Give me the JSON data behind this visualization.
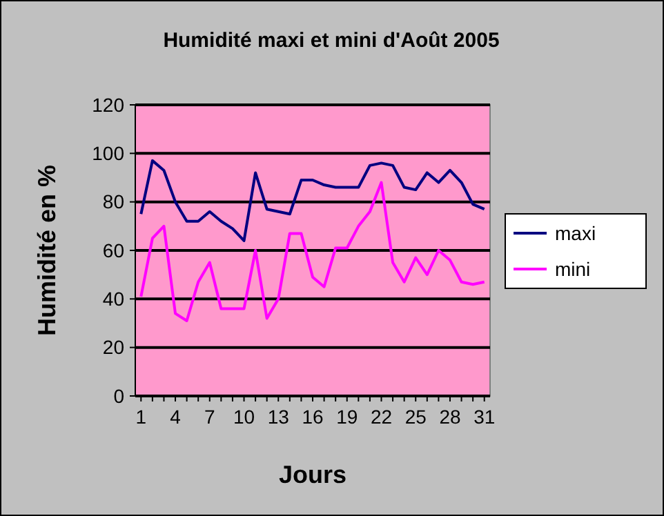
{
  "chart_data": {
    "type": "line",
    "title": "Humidité maxi et mini d'Août 2005",
    "xlabel": "Jours",
    "ylabel": "Humidité en %",
    "x": [
      1,
      2,
      3,
      4,
      5,
      6,
      7,
      8,
      9,
      10,
      11,
      12,
      13,
      14,
      15,
      16,
      17,
      18,
      19,
      20,
      21,
      22,
      23,
      24,
      25,
      26,
      27,
      28,
      29,
      30,
      31
    ],
    "xlim": [
      0.5,
      31.5
    ],
    "xticks": [
      1,
      4,
      7,
      10,
      13,
      16,
      19,
      22,
      25,
      28,
      31
    ],
    "ylim": [
      0,
      120
    ],
    "yticks": [
      0,
      20,
      40,
      60,
      80,
      100,
      120
    ],
    "grid": "y",
    "legend": "right",
    "series": [
      {
        "name": "maxi",
        "color": "#000080",
        "values": [
          75,
          97,
          93,
          80,
          72,
          72,
          76,
          72,
          69,
          64,
          92,
          77,
          76,
          75,
          89,
          89,
          87,
          86,
          86,
          86,
          95,
          96,
          95,
          86,
          85,
          92,
          88,
          93,
          88,
          79,
          77
        ]
      },
      {
        "name": "mini",
        "color": "#ff00ff",
        "values": [
          41,
          65,
          70,
          34,
          31,
          47,
          55,
          36,
          36,
          36,
          60,
          32,
          40,
          67,
          67,
          49,
          45,
          61,
          61,
          70,
          76,
          88,
          55,
          47,
          57,
          50,
          60,
          56,
          47,
          46,
          47
        ]
      }
    ]
  }
}
